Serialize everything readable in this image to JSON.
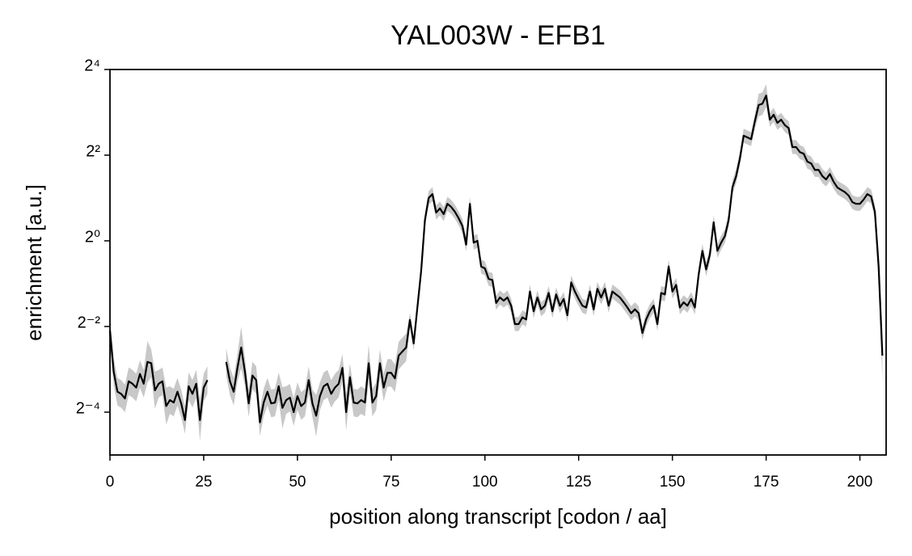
{
  "chart_data": {
    "type": "line",
    "title": "YAL003W - EFB1",
    "xlabel": "position along transcript [codon / aa]",
    "ylabel": "enrichment [a.u.]",
    "x": [
      0,
      1,
      2,
      3,
      4,
      5,
      6,
      7,
      8,
      9,
      10,
      11,
      12,
      13,
      14,
      15,
      16,
      17,
      18,
      19,
      20,
      21,
      22,
      23,
      24,
      25,
      26,
      27,
      28,
      29,
      30,
      31,
      32,
      33,
      34,
      35,
      36,
      37,
      38,
      39,
      40,
      41,
      42,
      43,
      44,
      45,
      46,
      47,
      48,
      49,
      50,
      51,
      52,
      53,
      54,
      55,
      56,
      57,
      58,
      59,
      60,
      61,
      62,
      63,
      64,
      65,
      66,
      67,
      68,
      69,
      70,
      71,
      72,
      73,
      74,
      75,
      76,
      77,
      78,
      79,
      80,
      81,
      82,
      83,
      84,
      85,
      86,
      87,
      88,
      89,
      90,
      91,
      92,
      93,
      94,
      95,
      96,
      97,
      98,
      99,
      100,
      101,
      102,
      103,
      104,
      105,
      106,
      107,
      108,
      109,
      110,
      111,
      112,
      113,
      114,
      115,
      116,
      117,
      118,
      119,
      120,
      121,
      122,
      123,
      124,
      125,
      126,
      127,
      128,
      129,
      130,
      131,
      132,
      133,
      134,
      135,
      136,
      137,
      138,
      139,
      140,
      141,
      142,
      143,
      144,
      145,
      146,
      147,
      148,
      149,
      150,
      151,
      152,
      153,
      154,
      155,
      156,
      157,
      158,
      159,
      160,
      161,
      162,
      163,
      164,
      165,
      166,
      167,
      168,
      169,
      170,
      171,
      172,
      173,
      174,
      175,
      176,
      177,
      178,
      179,
      180,
      181,
      182,
      183,
      184,
      185,
      186,
      187,
      188,
      189,
      190,
      191,
      192,
      193,
      194,
      195,
      196,
      197,
      198,
      199,
      200,
      201,
      202,
      203,
      204,
      205,
      206
    ],
    "series": [
      {
        "color": "#000000",
        "band_color": "#c8c8c8",
        "values": [
          0.233,
          0.12,
          0.087,
          0.084,
          0.078,
          0.103,
          0.099,
          0.093,
          0.116,
          0.099,
          0.141,
          0.138,
          0.089,
          0.099,
          0.103,
          0.069,
          0.076,
          0.073,
          0.087,
          0.072,
          0.055,
          0.095,
          0.084,
          0.099,
          0.055,
          0.093,
          0.105,
          null,
          null,
          null,
          null,
          0.141,
          0.103,
          0.087,
          0.128,
          0.178,
          0.12,
          0.072,
          0.113,
          0.105,
          0.053,
          0.073,
          0.087,
          0.072,
          0.073,
          0.095,
          0.067,
          0.076,
          0.079,
          0.0625,
          0.081,
          0.069,
          0.073,
          0.105,
          0.072,
          0.059,
          0.081,
          0.095,
          0.099,
          0.084,
          0.093,
          0.099,
          0.128,
          0.0625,
          0.11,
          0.073,
          0.072,
          0.076,
          0.073,
          0.138,
          0.073,
          0.081,
          0.138,
          0.093,
          0.118,
          0.118,
          0.108,
          0.156,
          0.167,
          0.178,
          0.278,
          0.19,
          0.342,
          0.616,
          1.4,
          2.0,
          2.13,
          1.58,
          1.69,
          1.54,
          1.82,
          1.73,
          1.6,
          1.44,
          1.27,
          0.94,
          1.82,
          0.97,
          1.0,
          0.66,
          0.64,
          0.54,
          0.53,
          0.366,
          0.4,
          0.38,
          0.4,
          0.35,
          0.26,
          0.26,
          0.29,
          0.28,
          0.44,
          0.32,
          0.4,
          0.33,
          0.35,
          0.43,
          0.32,
          0.42,
          0.35,
          0.39,
          0.3,
          0.51,
          0.44,
          0.39,
          0.35,
          0.34,
          0.44,
          0.33,
          0.46,
          0.4,
          0.46,
          0.35,
          0.44,
          0.42,
          0.4,
          0.37,
          0.34,
          0.31,
          0.33,
          0.31,
          0.225,
          0.28,
          0.32,
          0.35,
          0.26,
          0.43,
          0.42,
          0.66,
          0.44,
          0.49,
          0.34,
          0.37,
          0.35,
          0.39,
          0.34,
          0.58,
          0.85,
          0.63,
          0.8,
          1.35,
          0.85,
          0.97,
          1.08,
          1.4,
          2.37,
          2.85,
          3.79,
          5.48,
          5.33,
          5.18,
          6.93,
          9.0,
          9.2,
          10.5,
          7.1,
          7.7,
          6.75,
          7.1,
          6.5,
          6.2,
          4.56,
          4.56,
          4.2,
          4.1,
          3.6,
          3.5,
          3.15,
          3.15,
          2.85,
          2.7,
          2.95,
          2.6,
          2.37,
          2.28,
          2.2,
          2.08,
          1.87,
          1.82,
          1.82,
          1.95,
          2.13,
          2.05,
          1.6,
          0.66,
          0.156
        ],
        "spread": [
          1.25,
          1.25,
          1.25,
          1.25,
          1.25,
          1.25,
          1.25,
          1.25,
          1.25,
          1.25,
          1.4,
          1.25,
          1.35,
          1.25,
          1.25,
          1.35,
          1.25,
          1.25,
          1.25,
          1.25,
          1.25,
          1.25,
          1.25,
          1.25,
          1.4,
          1.25,
          1.25,
          null,
          null,
          null,
          null,
          1.25,
          1.25,
          1.25,
          1.25,
          1.4,
          1.25,
          1.25,
          1.25,
          1.25,
          1.25,
          1.25,
          1.25,
          1.25,
          1.25,
          1.25,
          1.4,
          1.25,
          1.25,
          1.25,
          1.25,
          1.25,
          1.25,
          1.25,
          1.25,
          1.4,
          1.25,
          1.25,
          1.25,
          1.25,
          1.25,
          1.25,
          1.25,
          1.35,
          1.25,
          1.25,
          1.25,
          1.25,
          1.25,
          1.35,
          1.25,
          1.25,
          1.25,
          1.25,
          1.25,
          1.25,
          1.25,
          1.25,
          1.25,
          1.25,
          1.12,
          1.12,
          1.12,
          1.12,
          1.12,
          1.12,
          1.12,
          1.12,
          1.12,
          1.12,
          1.12,
          1.12,
          1.12,
          1.12,
          1.12,
          1.12,
          1.12,
          1.12,
          1.12,
          1.12,
          1.12,
          1.12,
          1.12,
          1.12,
          1.12,
          1.12,
          1.12,
          1.12,
          1.12,
          1.12,
          1.12,
          1.12,
          1.12,
          1.12,
          1.12,
          1.12,
          1.12,
          1.12,
          1.12,
          1.12,
          1.12,
          1.12,
          1.12,
          1.12,
          1.12,
          1.12,
          1.12,
          1.12,
          1.12,
          1.12,
          1.12,
          1.12,
          1.12,
          1.12,
          1.12,
          1.12,
          1.12,
          1.12,
          1.12,
          1.12,
          1.12,
          1.12,
          1.12,
          1.12,
          1.12,
          1.12,
          1.12,
          1.12,
          1.12,
          1.12,
          1.12,
          1.12,
          1.12,
          1.12,
          1.12,
          1.12,
          1.12,
          1.12,
          1.12,
          1.12,
          1.12,
          1.12,
          1.12,
          1.12,
          1.12,
          1.12,
          1.12,
          1.12,
          1.12,
          1.12,
          1.12,
          1.12,
          1.12,
          1.2,
          1.2,
          1.2,
          1.12,
          1.12,
          1.12,
          1.12,
          1.12,
          1.12,
          1.12,
          1.12,
          1.12,
          1.12,
          1.12,
          1.12,
          1.12,
          1.12,
          1.12,
          1.12,
          1.12,
          1.12,
          1.12,
          1.12,
          1.12,
          1.12,
          1.12,
          1.12,
          1.12,
          1.12,
          1.12,
          1.12,
          1.12,
          1.3,
          1.5
        ]
      }
    ],
    "xlim": [
      0,
      207
    ],
    "xticks": [
      0,
      25,
      50,
      75,
      100,
      125,
      150,
      175,
      200
    ],
    "ylim": [
      0.03125,
      16
    ],
    "yscale": "log2",
    "yticks": [
      {
        "value": 0.0625,
        "label": "2⁻⁴"
      },
      {
        "value": 0.25,
        "label": "2⁻²"
      },
      {
        "value": 1,
        "label": "2⁰"
      },
      {
        "value": 4,
        "label": "2²"
      },
      {
        "value": 16,
        "label": "2⁴"
      }
    ],
    "grid": false
  }
}
